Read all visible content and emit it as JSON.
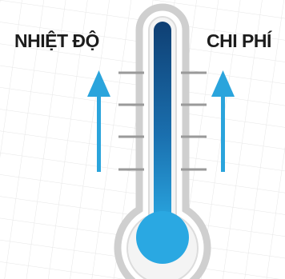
{
  "labels": {
    "left": "NHIỆT ĐỘ",
    "right": "CHI PHÍ"
  },
  "icons": {
    "left_arrow": "arrow-up-icon",
    "right_arrow": "arrow-up-icon",
    "thermometer": "thermometer-icon"
  },
  "colors": {
    "arrow": "#2aa4dc",
    "mercury_top": "#0f3f73",
    "mercury_bottom": "#2aa8e2",
    "tube_outline": "#cfcfcf",
    "tick": "#9a9a9a",
    "text": "#1c1c1c"
  }
}
